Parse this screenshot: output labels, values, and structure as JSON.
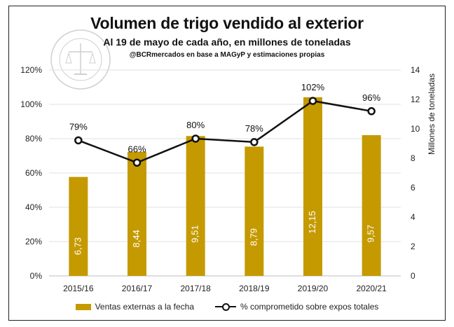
{
  "chart_data": {
    "type": "bar",
    "title": "Volumen de trigo vendido al exterior",
    "subtitle": "Al 19 de mayo de cada año, en millones de toneladas",
    "source": "@BCRmercados en base a MAGyP y estimaciones propias",
    "watermark_text": "BOLSA DE COMERCIO DE ROSARIO",
    "categories": [
      "2015/16",
      "2016/17",
      "2017/18",
      "2018/19",
      "2019/20",
      "2020/21"
    ],
    "series": [
      {
        "name": "Ventas externas a la fecha",
        "type": "bar",
        "axis": "right",
        "values": [
          6.73,
          8.44,
          9.51,
          8.79,
          12.15,
          9.57
        ],
        "labels": [
          "6,73",
          "8,44",
          "9,51",
          "8,79",
          "12,15",
          "9,57"
        ],
        "color": "#c49a00"
      },
      {
        "name": "% comprometido sobre expos totales",
        "type": "line",
        "axis": "left",
        "values": [
          79,
          66,
          80,
          78,
          102,
          96
        ],
        "labels": [
          "79%",
          "66%",
          "80%",
          "78%",
          "102%",
          "96%"
        ],
        "color": "#111111"
      }
    ],
    "y_left": {
      "label": "",
      "range": [
        0,
        120
      ],
      "ticks": [
        "0%",
        "20%",
        "40%",
        "60%",
        "80%",
        "100%",
        "120%"
      ]
    },
    "y_right": {
      "label": "Millones de toneladas",
      "range": [
        0,
        14
      ],
      "ticks": [
        "0",
        "2",
        "4",
        "6",
        "8",
        "10",
        "12",
        "14"
      ]
    },
    "grid": true,
    "legend": "bottom"
  }
}
